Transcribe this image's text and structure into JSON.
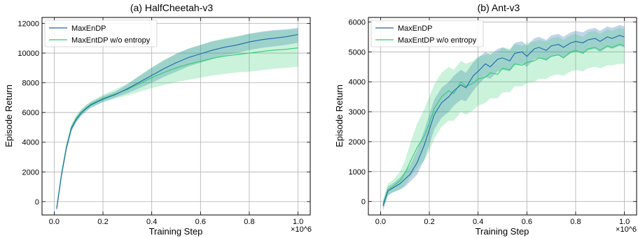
{
  "figure": {
    "palette": {
      "series_0": "#2166ac",
      "series_1": "#2ecc71"
    }
  },
  "chart_data": [
    {
      "type": "line",
      "title": "(a) HalfCheetah-v3",
      "xlabel": "Training Step",
      "ylabel": "Episode Return",
      "x_scale_label": "×10^6",
      "xlim": [
        -0.05,
        1.05
      ],
      "ylim": [
        -900,
        12400
      ],
      "xticks": [
        0.0,
        0.2,
        0.4,
        0.6,
        0.8,
        1.0
      ],
      "xtick_labels": [
        "0.0",
        "0.2",
        "0.4",
        "0.6",
        "0.8",
        "1.0"
      ],
      "yticks": [
        0,
        2000,
        4000,
        6000,
        8000,
        10000,
        12000
      ],
      "ytick_labels": [
        "0",
        "2000",
        "4000",
        "6000",
        "8000",
        "10000",
        "12000"
      ],
      "grid": true,
      "legend": "top-left",
      "x": [
        0.01,
        0.03,
        0.05,
        0.07,
        0.09,
        0.11,
        0.13,
        0.15,
        0.2,
        0.25,
        0.3,
        0.35,
        0.4,
        0.45,
        0.5,
        0.55,
        0.6,
        0.65,
        0.7,
        0.75,
        0.8,
        0.85,
        0.9,
        0.95,
        1.0
      ],
      "series": [
        {
          "name": "MaxEnDP",
          "values": [
            -500,
            1800,
            3600,
            4900,
            5500,
            5950,
            6250,
            6500,
            6900,
            7200,
            7600,
            8050,
            8500,
            8950,
            9350,
            9700,
            9950,
            10200,
            10400,
            10550,
            10750,
            10900,
            11000,
            11100,
            11250
          ],
          "band_lower": [
            -650,
            1600,
            3400,
            4700,
            5300,
            5750,
            6050,
            6300,
            6700,
            7000,
            7300,
            7650,
            8000,
            8400,
            8750,
            9100,
            9350,
            9600,
            9850,
            10000,
            10200,
            10350,
            10450,
            10550,
            10700
          ],
          "band_upper": [
            -350,
            2000,
            3800,
            5100,
            5700,
            6150,
            6450,
            6700,
            7100,
            7400,
            7900,
            8450,
            9000,
            9500,
            9950,
            10300,
            10550,
            10800,
            10950,
            11100,
            11300,
            11450,
            11550,
            11600,
            11700
          ]
        },
        {
          "name": "MaxEntDP w/o entropy",
          "values": [
            -400,
            1900,
            3700,
            5000,
            5600,
            6000,
            6300,
            6550,
            6950,
            7250,
            7550,
            7950,
            8350,
            8700,
            9000,
            9250,
            9450,
            9650,
            9800,
            9900,
            10000,
            10100,
            10200,
            10250,
            10350
          ],
          "band_lower": [
            -550,
            1700,
            3500,
            4800,
            5400,
            5800,
            6100,
            6350,
            6700,
            6950,
            7150,
            7400,
            7650,
            7850,
            8050,
            8200,
            8350,
            8500,
            8600,
            8700,
            8750,
            8850,
            8950,
            9000,
            9100
          ],
          "band_upper": [
            -250,
            2100,
            3900,
            5200,
            5800,
            6200,
            6500,
            6750,
            7200,
            7550,
            7950,
            8500,
            9050,
            9550,
            9950,
            10300,
            10550,
            10800,
            11000,
            11150,
            11300,
            11400,
            11500,
            11550,
            11600
          ]
        }
      ]
    },
    {
      "type": "line",
      "title": "(b) Ant-v3",
      "xlabel": "Training Step",
      "ylabel": "Episode Return",
      "x_scale_label": "×10^6",
      "xlim": [
        -0.05,
        1.05
      ],
      "ylim": [
        -450,
        6150
      ],
      "xticks": [
        0.0,
        0.2,
        0.4,
        0.6,
        0.8,
        1.0
      ],
      "xtick_labels": [
        "0.0",
        "0.2",
        "0.4",
        "0.6",
        "0.8",
        "1.0"
      ],
      "yticks": [
        0,
        1000,
        2000,
        3000,
        4000,
        5000,
        6000
      ],
      "ytick_labels": [
        "0",
        "1000",
        "2000",
        "3000",
        "4000",
        "5000",
        "6000"
      ],
      "grid": true,
      "legend": "top-left",
      "x": [
        0.01,
        0.03,
        0.05,
        0.08,
        0.1,
        0.12,
        0.15,
        0.18,
        0.2,
        0.22,
        0.25,
        0.28,
        0.3,
        0.33,
        0.35,
        0.38,
        0.4,
        0.43,
        0.45,
        0.48,
        0.5,
        0.53,
        0.55,
        0.58,
        0.6,
        0.63,
        0.65,
        0.68,
        0.7,
        0.73,
        0.75,
        0.78,
        0.8,
        0.83,
        0.85,
        0.88,
        0.9,
        0.93,
        0.95,
        0.98,
        1.0
      ],
      "series": [
        {
          "name": "MaxEnDP",
          "values": [
            -150,
            350,
            450,
            600,
            750,
            900,
            1300,
            1900,
            2400,
            2900,
            3300,
            3500,
            3700,
            3900,
            3800,
            4200,
            4350,
            4600,
            4500,
            4750,
            4800,
            4700,
            4950,
            5000,
            4850,
            5100,
            5150,
            5050,
            5200,
            5250,
            5150,
            5300,
            5350,
            5300,
            5400,
            5450,
            5350,
            5500,
            5450,
            5550,
            5500
          ],
          "band_lower": [
            -300,
            200,
            300,
            400,
            500,
            650,
            900,
            1400,
            1900,
            2400,
            2800,
            3000,
            3200,
            3400,
            3350,
            3700,
            3900,
            4150,
            4100,
            4350,
            4400,
            4350,
            4550,
            4600,
            4500,
            4750,
            4800,
            4700,
            4850,
            4900,
            4800,
            4950,
            5000,
            4950,
            5050,
            5100,
            5000,
            5150,
            5100,
            5200,
            5150
          ],
          "band_upper": [
            0,
            500,
            600,
            800,
            1000,
            1200,
            1700,
            2400,
            2900,
            3400,
            3800,
            4000,
            4200,
            4400,
            4300,
            4650,
            4800,
            5000,
            4900,
            5100,
            5150,
            5050,
            5300,
            5350,
            5200,
            5450,
            5500,
            5400,
            5550,
            5600,
            5500,
            5650,
            5700,
            5650,
            5750,
            5800,
            5700,
            5850,
            5800,
            5900,
            5850
          ]
        },
        {
          "name": "MaxEntDP w/o entropy",
          "values": [
            -100,
            400,
            500,
            700,
            950,
            1300,
            1800,
            2200,
            2600,
            3100,
            3500,
            3700,
            3600,
            4000,
            3850,
            3950,
            4100,
            4150,
            4300,
            4250,
            4450,
            4400,
            4600,
            4550,
            4650,
            4700,
            4800,
            4750,
            4850,
            4900,
            4800,
            5000,
            5050,
            4950,
            5100,
            5150,
            5050,
            5200,
            5150,
            5250,
            5200
          ],
          "band_lower": [
            -250,
            200,
            300,
            400,
            550,
            800,
            1100,
            1400,
            1700,
            2100,
            2500,
            2700,
            2700,
            3000,
            2900,
            3050,
            3200,
            3300,
            3450,
            3450,
            3650,
            3650,
            3850,
            3850,
            3950,
            4000,
            4100,
            4100,
            4200,
            4250,
            4200,
            4350,
            4400,
            4350,
            4450,
            4500,
            4450,
            4550,
            4550,
            4600,
            4600
          ],
          "band_upper": [
            50,
            600,
            700,
            1000,
            1350,
            1900,
            2600,
            3100,
            3500,
            3900,
            4300,
            4500,
            4400,
            4700,
            4600,
            4700,
            4850,
            4900,
            5000,
            4950,
            5150,
            5100,
            5250,
            5200,
            5300,
            5350,
            5400,
            5350,
            5450,
            5500,
            5400,
            5550,
            5600,
            5500,
            5650,
            5700,
            5600,
            5750,
            5700,
            5800,
            5750
          ]
        }
      ]
    }
  ]
}
